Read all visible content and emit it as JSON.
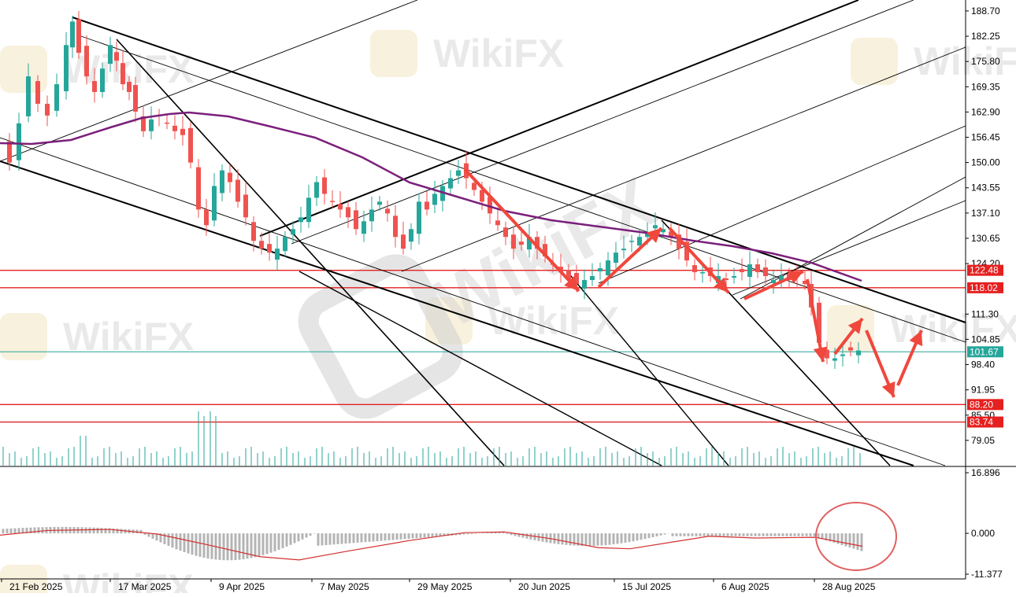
{
  "colors": {
    "background": "#ffffff",
    "up_candle": "#26a69a",
    "down_candle": "#ef5350",
    "ma_line": "#7b1f7b",
    "resistance_line": "#e52020",
    "current_price_line": "#26a69a",
    "channel_lines": "#000000",
    "annotation_arrows": "#f0473c",
    "volume_bars": "#26a69a",
    "oscillator_bars": "#b4b4b4",
    "signal_line": "#d32f2f",
    "highlight_circle": "#e06060",
    "watermark": "#dcdcdc"
  },
  "watermark_text": "WikiFX",
  "chart_data": {
    "type": "candlestick",
    "symbol": "",
    "price_axis": {
      "ticks": [
        "188.70",
        "182.25",
        "175.80",
        "169.35",
        "162.90",
        "156.45",
        "150.00",
        "143.55",
        "137.10",
        "130.65",
        "124.20",
        "111.30",
        "104.85",
        "98.40",
        "91.95",
        "85.50",
        "79.05"
      ],
      "ylim": [
        72.6,
        191.5
      ]
    },
    "price_labels": {
      "current": "101.67",
      "levels": [
        "122.48",
        "118.02",
        "88.20",
        "83.74"
      ]
    },
    "horizontal_levels": [
      122.48,
      118.02,
      88.2,
      83.74
    ],
    "current_price": 101.67,
    "x_axis": {
      "date_labels": [
        "21 Feb 2025",
        "17 Mar 2025",
        "9 Apr 2025",
        "7 May 2025",
        "29 May 2025",
        "20 Jun 2025",
        "15 Jul 2025",
        "6 Aug 2025",
        "28 Aug 2025"
      ]
    },
    "moving_average": "purple line descending from ~162 (March) to ~121 (late August)",
    "oscillator": {
      "type": "histogram_with_signal",
      "ticks": [
        "16.896",
        "0.000",
        "-11.377"
      ],
      "ylim": [
        -11.377,
        16.896
      ]
    },
    "annotations": {
      "arrows": "red zigzag arrows projecting price down toward 88-94 then a rebound",
      "circle": "red circle around latest oscillator bars"
    },
    "grid": false,
    "legend": "none"
  }
}
